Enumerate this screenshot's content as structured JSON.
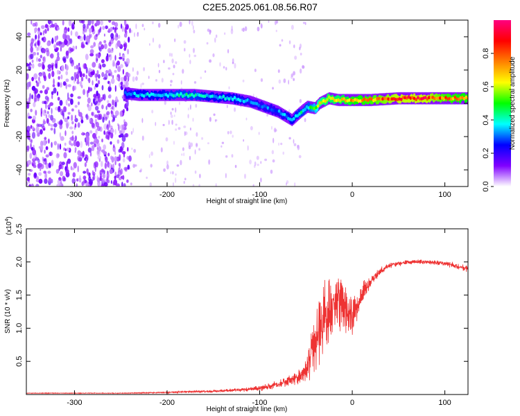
{
  "title": "C2E5.2025.061.08.56.R07",
  "chart_data": [
    {
      "type": "heatmap",
      "xlabel": "Height of straight line (km)",
      "ylabel": "Frequency (Hz)",
      "xlim": [
        -352,
        125
      ],
      "ylim": [
        -50,
        50
      ],
      "xticks": [
        -300,
        -200,
        -100,
        0,
        100
      ],
      "xtick_labels": [
        "-300",
        "-200",
        "-100",
        "0",
        "100"
      ],
      "yticks": [
        -40,
        -20,
        0,
        20,
        40
      ],
      "ytick_labels": [
        "-40",
        "-20",
        "0",
        "20",
        "40"
      ],
      "colorbar": {
        "label": "Normalized spectral amplitude",
        "range": [
          0,
          1
        ],
        "ticks": [
          0.0,
          0.2,
          0.4,
          0.6,
          0.8
        ],
        "tick_labels": [
          "0.0",
          "0.2",
          "0.4",
          "0.6",
          "0.8"
        ],
        "colors": [
          "#ffffff",
          "#8000ff",
          "#0000ff",
          "#00ffff",
          "#00ff00",
          "#ffff00",
          "#ff8000",
          "#ff0000",
          "#ff0080"
        ]
      },
      "signal_trace": {
        "x": [
          -245,
          -230,
          -210,
          -190,
          -170,
          -150,
          -130,
          -110,
          -95,
          -80,
          -65,
          -55,
          -48,
          -40,
          -35,
          -25,
          -15,
          0,
          20,
          50,
          80,
          100,
          125
        ],
        "y": [
          6,
          5,
          5,
          5,
          5,
          4,
          3,
          1,
          -2,
          -5,
          -10,
          -5,
          -2,
          -3,
          0,
          3,
          2,
          2,
          2,
          3,
          3,
          3,
          3
        ],
        "amplitude": [
          0.3,
          0.35,
          0.35,
          0.4,
          0.4,
          0.35,
          0.35,
          0.3,
          0.3,
          0.3,
          0.35,
          0.4,
          0.4,
          0.5,
          0.6,
          0.65,
          0.65,
          0.7,
          0.75,
          0.85,
          0.85,
          0.75,
          0.7
        ]
      },
      "noise_region": {
        "x_range": [
          -352,
          -240
        ],
        "y_range": [
          -50,
          50
        ],
        "amplitude": 0.1
      },
      "grid": false
    },
    {
      "type": "line",
      "xlabel": "Height of straight line (km)",
      "ylabel": "SNR (10 * v/v)",
      "y_scale_label": "(x10",
      "y_scale_exp": "4",
      "xlim": [
        -352,
        125
      ],
      "ylim": [
        0,
        2.5
      ],
      "xticks": [
        -300,
        -200,
        -100,
        0,
        100
      ],
      "xtick_labels": [
        "-300",
        "-200",
        "-100",
        "0",
        "100"
      ],
      "yticks": [
        0.5,
        1.0,
        1.5,
        2.0,
        2.5
      ],
      "ytick_labels": [
        "0.5",
        "1.0",
        "1.5",
        "2.0",
        "2.5"
      ],
      "series": [
        {
          "color": "#ee3333",
          "x": [
            -352,
            -300,
            -250,
            -200,
            -180,
            -150,
            -120,
            -100,
            -80,
            -70,
            -60,
            -50,
            -45,
            -40,
            -35,
            -30,
            -25,
            -20,
            -15,
            -10,
            -5,
            0,
            5,
            10,
            20,
            30,
            40,
            60,
            80,
            100,
            110,
            125
          ],
          "y": [
            0.02,
            0.02,
            0.02,
            0.03,
            0.04,
            0.05,
            0.07,
            0.1,
            0.15,
            0.2,
            0.25,
            0.35,
            0.6,
            0.8,
            1.0,
            1.2,
            1.3,
            1.4,
            1.4,
            1.3,
            1.2,
            1.2,
            1.3,
            1.5,
            1.7,
            1.85,
            1.95,
            2.0,
            2.0,
            1.98,
            1.95,
            1.9
          ],
          "spread": [
            0.01,
            0.01,
            0.01,
            0.02,
            0.03,
            0.03,
            0.05,
            0.07,
            0.1,
            0.15,
            0.2,
            0.3,
            0.6,
            0.7,
            0.9,
            1.0,
            1.0,
            1.0,
            1.0,
            0.8,
            0.6,
            0.5,
            0.4,
            0.3,
            0.15,
            0.1,
            0.08,
            0.06,
            0.06,
            0.07,
            0.08,
            0.1
          ]
        }
      ],
      "grid": false
    }
  ]
}
